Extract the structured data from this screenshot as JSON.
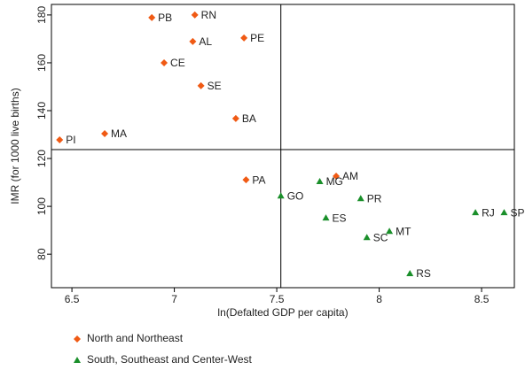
{
  "chart_data": {
    "type": "scatter",
    "x_label": "ln(Defalted GDP per capita)",
    "y_label": "IMR (for 1000 live births)",
    "xlim": [
      6.4,
      8.66
    ],
    "xticks": [
      6.5,
      7,
      7.5,
      8,
      8.5
    ],
    "ylim": [
      66,
      184.4
    ],
    "yticks": [
      80,
      100,
      120,
      140,
      160,
      180
    ],
    "vline": 7.52,
    "hline": 123.7,
    "series": [
      {
        "name": "North and Northeast",
        "color": "#f05a14",
        "marker": "diamond",
        "labels": [
          "PB",
          "RN",
          "AL",
          "PE",
          "CE",
          "SE",
          "BA",
          "MA",
          "PI",
          "PA",
          "AM"
        ],
        "x": [
          6.89,
          7.1,
          7.09,
          7.34,
          6.95,
          7.13,
          7.3,
          6.66,
          6.44,
          7.35,
          7.79
        ],
        "values": [
          178.9,
          180,
          168.9,
          170.4,
          160,
          150.4,
          136.7,
          130.4,
          127.8,
          111.1,
          112.6
        ]
      },
      {
        "name": "South, Southeast and Center-West",
        "color": "#1a8f2a",
        "marker": "triangle",
        "labels": [
          "MG",
          "GO",
          "PR",
          "ES",
          "SC",
          "MT",
          "RS",
          "RJ",
          "SP"
        ],
        "x": [
          7.71,
          7.52,
          7.91,
          7.74,
          7.94,
          8.05,
          8.15,
          8.47,
          8.61
        ],
        "values": [
          110.4,
          104.4,
          103.3,
          95.2,
          87,
          89.6,
          71.9,
          97.4,
          97.4
        ]
      }
    ]
  }
}
